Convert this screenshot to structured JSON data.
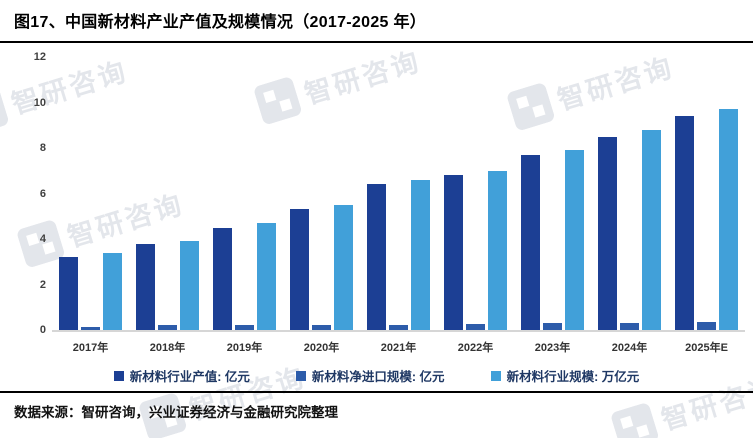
{
  "header": {
    "title": "图17、中国新材料产业产值及规模情况（2017-2025 年）"
  },
  "watermark": {
    "text": "智研咨询"
  },
  "chart_data": {
    "type": "bar",
    "title": "中国新材料产业产值及规模情况（2017-2025 年）",
    "categories": [
      "2017年",
      "2018年",
      "2019年",
      "2020年",
      "2021年",
      "2022年",
      "2023年",
      "2024年",
      "2025年E"
    ],
    "series": [
      {
        "name": "新材料行业产值: 亿元",
        "color": "#1c3f94",
        "values": [
          3.2,
          3.8,
          4.5,
          5.3,
          6.4,
          6.8,
          7.7,
          8.5,
          9.4
        ]
      },
      {
        "name": "新材料净进口规模: 亿元",
        "color": "#2d5caa",
        "values": [
          0.15,
          0.2,
          0.2,
          0.2,
          0.2,
          0.25,
          0.3,
          0.3,
          0.35
        ]
      },
      {
        "name": "新材料行业规模: 万亿元",
        "color": "#41a0d9",
        "values": [
          3.4,
          3.9,
          4.7,
          5.5,
          6.6,
          7.0,
          7.9,
          8.8,
          9.7
        ]
      }
    ],
    "ylim": [
      0,
      12
    ],
    "yticks": [
      0,
      2,
      4,
      6,
      8,
      10,
      12
    ],
    "grid": false,
    "legend_position": "bottom"
  },
  "footer": {
    "source": "数据来源：智研咨询，兴业证券经济与金融研究院整理"
  }
}
